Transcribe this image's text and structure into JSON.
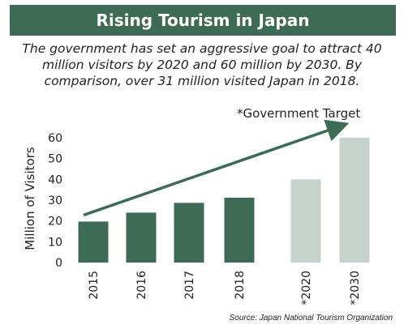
{
  "header": {
    "title": "Rising Tourism in Japan",
    "subtitle": "The government has set an aggressive goal to attract 40 million visitors by 2020 and 60 million by 2030. By comparison, over 31 million visited Japan in 2018."
  },
  "chart_data": {
    "type": "bar",
    "categories": [
      "2015",
      "2016",
      "2017",
      "2018",
      "*2020",
      "*2030"
    ],
    "values": [
      19.7,
      24.0,
      28.7,
      31.2,
      40,
      60
    ],
    "target_flags": [
      false,
      false,
      false,
      false,
      true,
      true
    ],
    "ylabel": "Million of Visitors",
    "ylim": [
      0,
      60
    ],
    "yticks": [
      "0",
      "10",
      "20",
      "30",
      "40",
      "50",
      "60"
    ],
    "annotation": "*Government Target",
    "colors": {
      "actual": "#3d6b56",
      "target": "#c5d3cc",
      "arrow": "#3d6b56"
    },
    "grid": false
  },
  "footer": {
    "source": "Source: Japan National Tourism Organization"
  }
}
